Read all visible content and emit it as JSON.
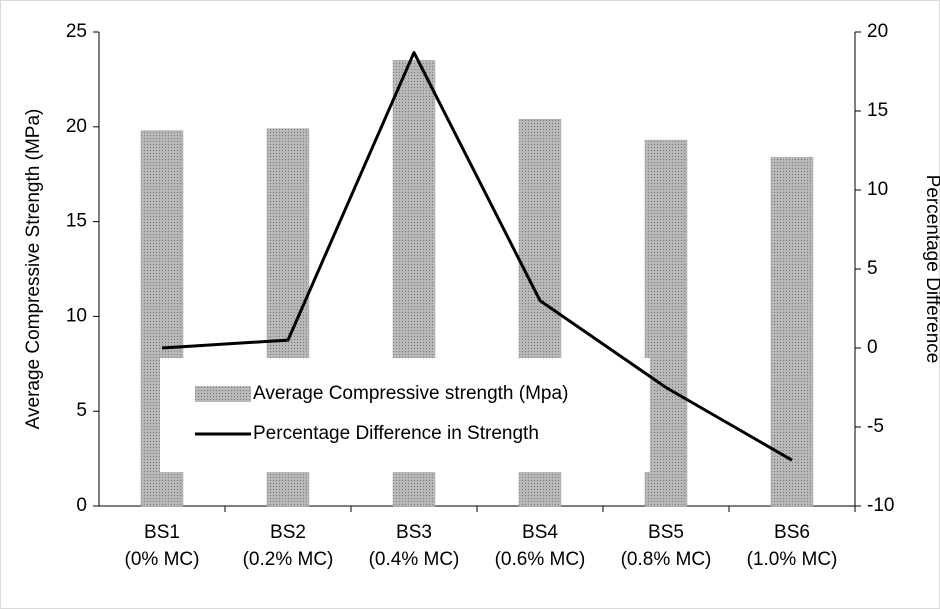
{
  "chart_data": {
    "type": "bar_line",
    "categories": [
      [
        "BS1",
        "(0% MC)"
      ],
      [
        "BS2",
        "(0.2% MC)"
      ],
      [
        "BS3",
        "(0.4% MC)"
      ],
      [
        "BS4",
        "(0.6% MC)"
      ],
      [
        "BS5",
        "(0.8% MC)"
      ],
      [
        "BS6",
        "(1.0% MC)"
      ]
    ],
    "series": [
      {
        "name": "Average Compressive strength (Mpa)",
        "type": "bar",
        "color": "#a6a6a6",
        "values": [
          19.8,
          19.9,
          23.5,
          20.4,
          19.3,
          18.4
        ]
      },
      {
        "name": "Percentage Difference in Strength",
        "type": "line",
        "axis": "y2",
        "color": "#000000",
        "values": [
          0,
          0.5,
          18.7,
          3,
          -2.5,
          -7.1
        ]
      }
    ],
    "ylabel": "Average Compressive Strength (MPa)",
    "y2label": "Percentage Difference",
    "ylim": [
      0,
      25
    ],
    "yticks": [
      0,
      5,
      10,
      15,
      20,
      25
    ],
    "y2lim": [
      -10,
      20
    ],
    "y2ticks": [
      -10,
      -5,
      0,
      5,
      10,
      15,
      20
    ],
    "legend": "lower center"
  }
}
